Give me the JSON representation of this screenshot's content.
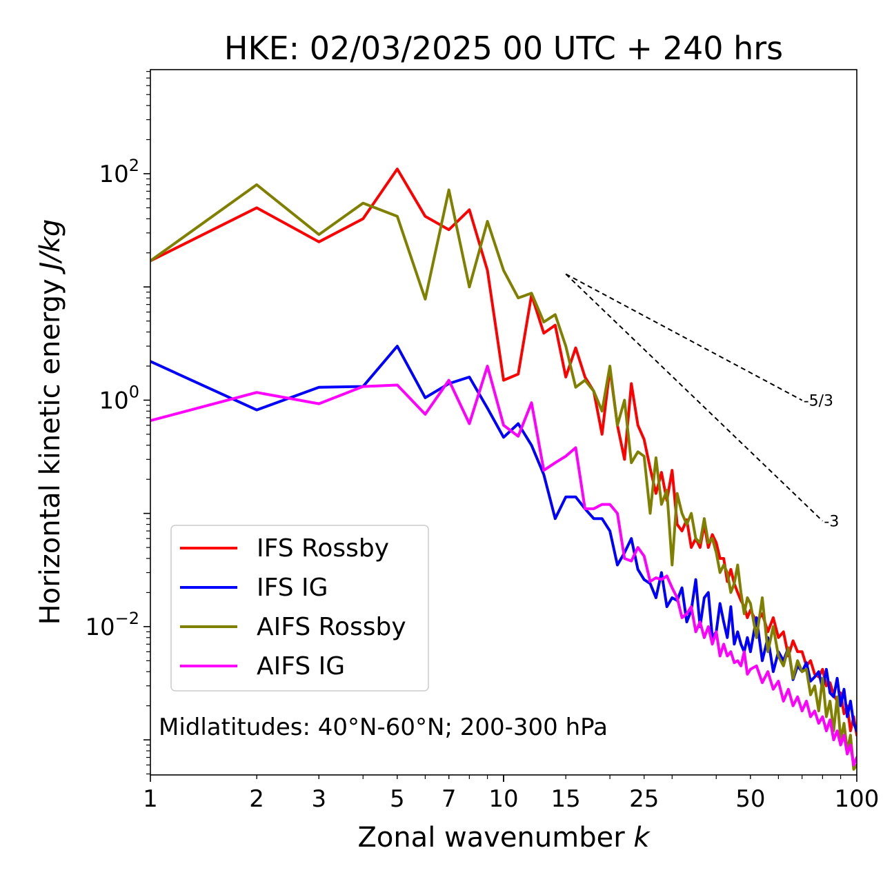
{
  "chart_data": {
    "type": "line",
    "title": "HKE: 02/03/2025 00 UTC + 240 hrs",
    "xlabel": "Zonal wavenumber",
    "xlabel_var": "k",
    "ylabel": "Horizontal kinetic energy",
    "ylabel_units": "J/kg",
    "xscale": "log",
    "yscale": "log",
    "xlim": [
      1,
      100
    ],
    "ylim": [
      0.00049,
      830
    ],
    "x_ticks": [
      {
        "value": 1,
        "label": "1"
      },
      {
        "value": 2,
        "label": "2"
      },
      {
        "value": 3,
        "label": "3"
      },
      {
        "value": 5,
        "label": "5"
      },
      {
        "value": 7,
        "label": "7"
      },
      {
        "value": 10,
        "label": "10"
      },
      {
        "value": 15,
        "label": "15"
      },
      {
        "value": 25,
        "label": "25"
      },
      {
        "value": 50,
        "label": "50"
      },
      {
        "value": 100,
        "label": "100"
      }
    ],
    "y_ticks": [
      {
        "value": 100,
        "base": "10",
        "exp": "2"
      },
      {
        "value": 1,
        "base": "10",
        "exp": "0"
      },
      {
        "value": 0.01,
        "base": "10",
        "exp": "−2"
      }
    ],
    "grid": false,
    "legend_position": "lower-left",
    "annotation": "Midlatitudes: 40°N-60°N; 200-300 hPa",
    "reference_lines": [
      {
        "label": "-5/3",
        "slope": -1.6667,
        "x": [
          15,
          70
        ],
        "y0": 13
      },
      {
        "label": "-3",
        "slope": -3,
        "x": [
          15,
          80
        ],
        "y0": 13
      }
    ],
    "series": [
      {
        "name": "IFS Rossby",
        "color": "#ff0000",
        "x": [
          1,
          2,
          3,
          4,
          5,
          6,
          7,
          8,
          9,
          10,
          11,
          12,
          13,
          14,
          15,
          16,
          17,
          18,
          19,
          20,
          21,
          22,
          23,
          24,
          25,
          26,
          27,
          28,
          29,
          30,
          31,
          32,
          33,
          34,
          35,
          36,
          37,
          38,
          39,
          40,
          41,
          42,
          43,
          44,
          45,
          46,
          47,
          48,
          49,
          50,
          52,
          54,
          56,
          58,
          60,
          62,
          64,
          66,
          68,
          70,
          72,
          74,
          76,
          78,
          80,
          82,
          84,
          86,
          88,
          90,
          92,
          94,
          96,
          98,
          100
        ],
        "y": [
          17,
          50,
          25,
          40,
          110,
          42,
          32,
          48,
          14,
          1.5,
          1.7,
          8.5,
          3.9,
          4.6,
          1.6,
          2.9,
          1.6,
          1.2,
          0.5,
          1.9,
          0.6,
          0.3,
          1.4,
          0.6,
          0.45,
          0.25,
          0.15,
          0.23,
          0.13,
          0.24,
          0.08,
          0.07,
          0.088,
          0.05,
          0.06,
          0.05,
          0.08,
          0.05,
          0.065,
          0.055,
          0.04,
          0.04,
          0.025,
          0.032,
          0.024,
          0.02,
          0.017,
          0.015,
          0.012,
          0.014,
          0.011,
          0.013,
          0.009,
          0.012,
          0.008,
          0.009,
          0.0055,
          0.0075,
          0.006,
          0.006,
          0.0045,
          0.005,
          0.0038,
          0.0036,
          0.0042,
          0.003,
          0.0032,
          0.0025,
          0.0022,
          0.0026,
          0.0017,
          0.002,
          0.0012,
          0.0016,
          0.0011
        ]
      },
      {
        "name": "IFS IG",
        "color": "#0000ff",
        "x": [
          1,
          2,
          3,
          4,
          5,
          6,
          7,
          8,
          9,
          10,
          11,
          12,
          13,
          14,
          15,
          16,
          17,
          18,
          19,
          20,
          21,
          22,
          23,
          24,
          25,
          26,
          27,
          28,
          29,
          30,
          31,
          32,
          33,
          34,
          35,
          36,
          37,
          38,
          39,
          40,
          41,
          42,
          43,
          44,
          45,
          46,
          47,
          48,
          49,
          50,
          52,
          54,
          56,
          58,
          60,
          62,
          64,
          66,
          68,
          70,
          72,
          74,
          76,
          78,
          80,
          82,
          84,
          86,
          88,
          90,
          92,
          94,
          96,
          98,
          100
        ],
        "y": [
          2.2,
          0.82,
          1.3,
          1.32,
          3.0,
          1.05,
          1.4,
          1.6,
          0.85,
          0.47,
          0.62,
          0.4,
          0.22,
          0.09,
          0.14,
          0.14,
          0.11,
          0.09,
          0.09,
          0.07,
          0.035,
          0.045,
          0.06,
          0.032,
          0.026,
          0.024,
          0.018,
          0.03,
          0.015,
          0.018,
          0.017,
          0.022,
          0.011,
          0.014,
          0.026,
          0.01,
          0.018,
          0.02,
          0.008,
          0.009,
          0.016,
          0.011,
          0.008,
          0.015,
          0.007,
          0.009,
          0.007,
          0.006,
          0.008,
          0.006,
          0.012,
          0.005,
          0.008,
          0.004,
          0.006,
          0.005,
          0.0065,
          0.0034,
          0.0045,
          0.004,
          0.0048,
          0.0033,
          0.0036,
          0.004,
          0.0028,
          0.0042,
          0.0026,
          0.0024,
          0.0035,
          0.002,
          0.0028,
          0.0016,
          0.0022,
          0.0014,
          0.0012
        ]
      },
      {
        "name": "AIFS Rossby",
        "color": "#808000",
        "x": [
          1,
          2,
          3,
          4,
          5,
          6,
          7,
          8,
          9,
          10,
          11,
          12,
          13,
          14,
          15,
          16,
          17,
          18,
          19,
          20,
          21,
          22,
          23,
          24,
          25,
          26,
          27,
          28,
          29,
          30,
          31,
          32,
          33,
          34,
          35,
          36,
          37,
          38,
          39,
          40,
          41,
          42,
          43,
          44,
          45,
          46,
          47,
          48,
          49,
          50,
          52,
          54,
          56,
          58,
          60,
          62,
          64,
          66,
          68,
          70,
          72,
          74,
          76,
          78,
          80,
          82,
          84,
          86,
          88,
          90,
          92,
          94,
          96,
          98,
          100
        ],
        "y": [
          17,
          80,
          29,
          55,
          42,
          7.8,
          72,
          10,
          38,
          14,
          8,
          8.8,
          4.9,
          5.7,
          3.0,
          1.3,
          1.5,
          1.2,
          0.8,
          2.0,
          0.6,
          1.0,
          0.28,
          0.35,
          0.32,
          0.1,
          0.31,
          0.12,
          0.16,
          0.035,
          0.15,
          0.1,
          0.08,
          0.1,
          0.06,
          0.055,
          0.09,
          0.055,
          0.06,
          0.045,
          0.03,
          0.035,
          0.03,
          0.02,
          0.024,
          0.035,
          0.02,
          0.013,
          0.018,
          0.016,
          0.008,
          0.018,
          0.006,
          0.01,
          0.0055,
          0.0045,
          0.0065,
          0.0035,
          0.005,
          0.004,
          0.0042,
          0.0025,
          0.003,
          0.0018,
          0.0035,
          0.0016,
          0.0022,
          0.0012,
          0.0024,
          0.001,
          0.0014,
          0.0008,
          0.0011,
          0.00055,
          0.0006
        ]
      },
      {
        "name": "AIFS IG",
        "color": "#ff00ff",
        "x": [
          1,
          2,
          3,
          4,
          5,
          6,
          7,
          8,
          9,
          10,
          11,
          12,
          13,
          14,
          15,
          16,
          17,
          18,
          19,
          20,
          21,
          22,
          23,
          24,
          25,
          26,
          27,
          28,
          29,
          30,
          31,
          32,
          33,
          34,
          35,
          36,
          37,
          38,
          39,
          40,
          41,
          42,
          43,
          44,
          45,
          46,
          47,
          48,
          49,
          50,
          52,
          54,
          56,
          58,
          60,
          62,
          64,
          66,
          68,
          70,
          72,
          74,
          76,
          78,
          80,
          82,
          84,
          86,
          88,
          90,
          92,
          94,
          96,
          98,
          100
        ],
        "y": [
          0.66,
          1.17,
          0.93,
          1.32,
          1.36,
          0.75,
          1.5,
          0.62,
          2.0,
          0.6,
          0.48,
          0.95,
          0.24,
          0.28,
          0.32,
          0.38,
          0.11,
          0.11,
          0.12,
          0.12,
          0.1,
          0.04,
          0.038,
          0.05,
          0.042,
          0.025,
          0.027,
          0.026,
          0.028,
          0.022,
          0.018,
          0.012,
          0.013,
          0.015,
          0.009,
          0.011,
          0.008,
          0.01,
          0.007,
          0.009,
          0.0055,
          0.007,
          0.0055,
          0.006,
          0.0048,
          0.005,
          0.0045,
          0.006,
          0.0038,
          0.0042,
          0.0045,
          0.0032,
          0.004,
          0.0028,
          0.0033,
          0.0022,
          0.0028,
          0.002,
          0.0024,
          0.0018,
          0.0022,
          0.0016,
          0.0018,
          0.0014,
          0.0016,
          0.0012,
          0.0015,
          0.001,
          0.0012,
          0.0009,
          0.0011,
          0.00075,
          0.0009,
          0.0006,
          0.0007
        ]
      }
    ]
  }
}
